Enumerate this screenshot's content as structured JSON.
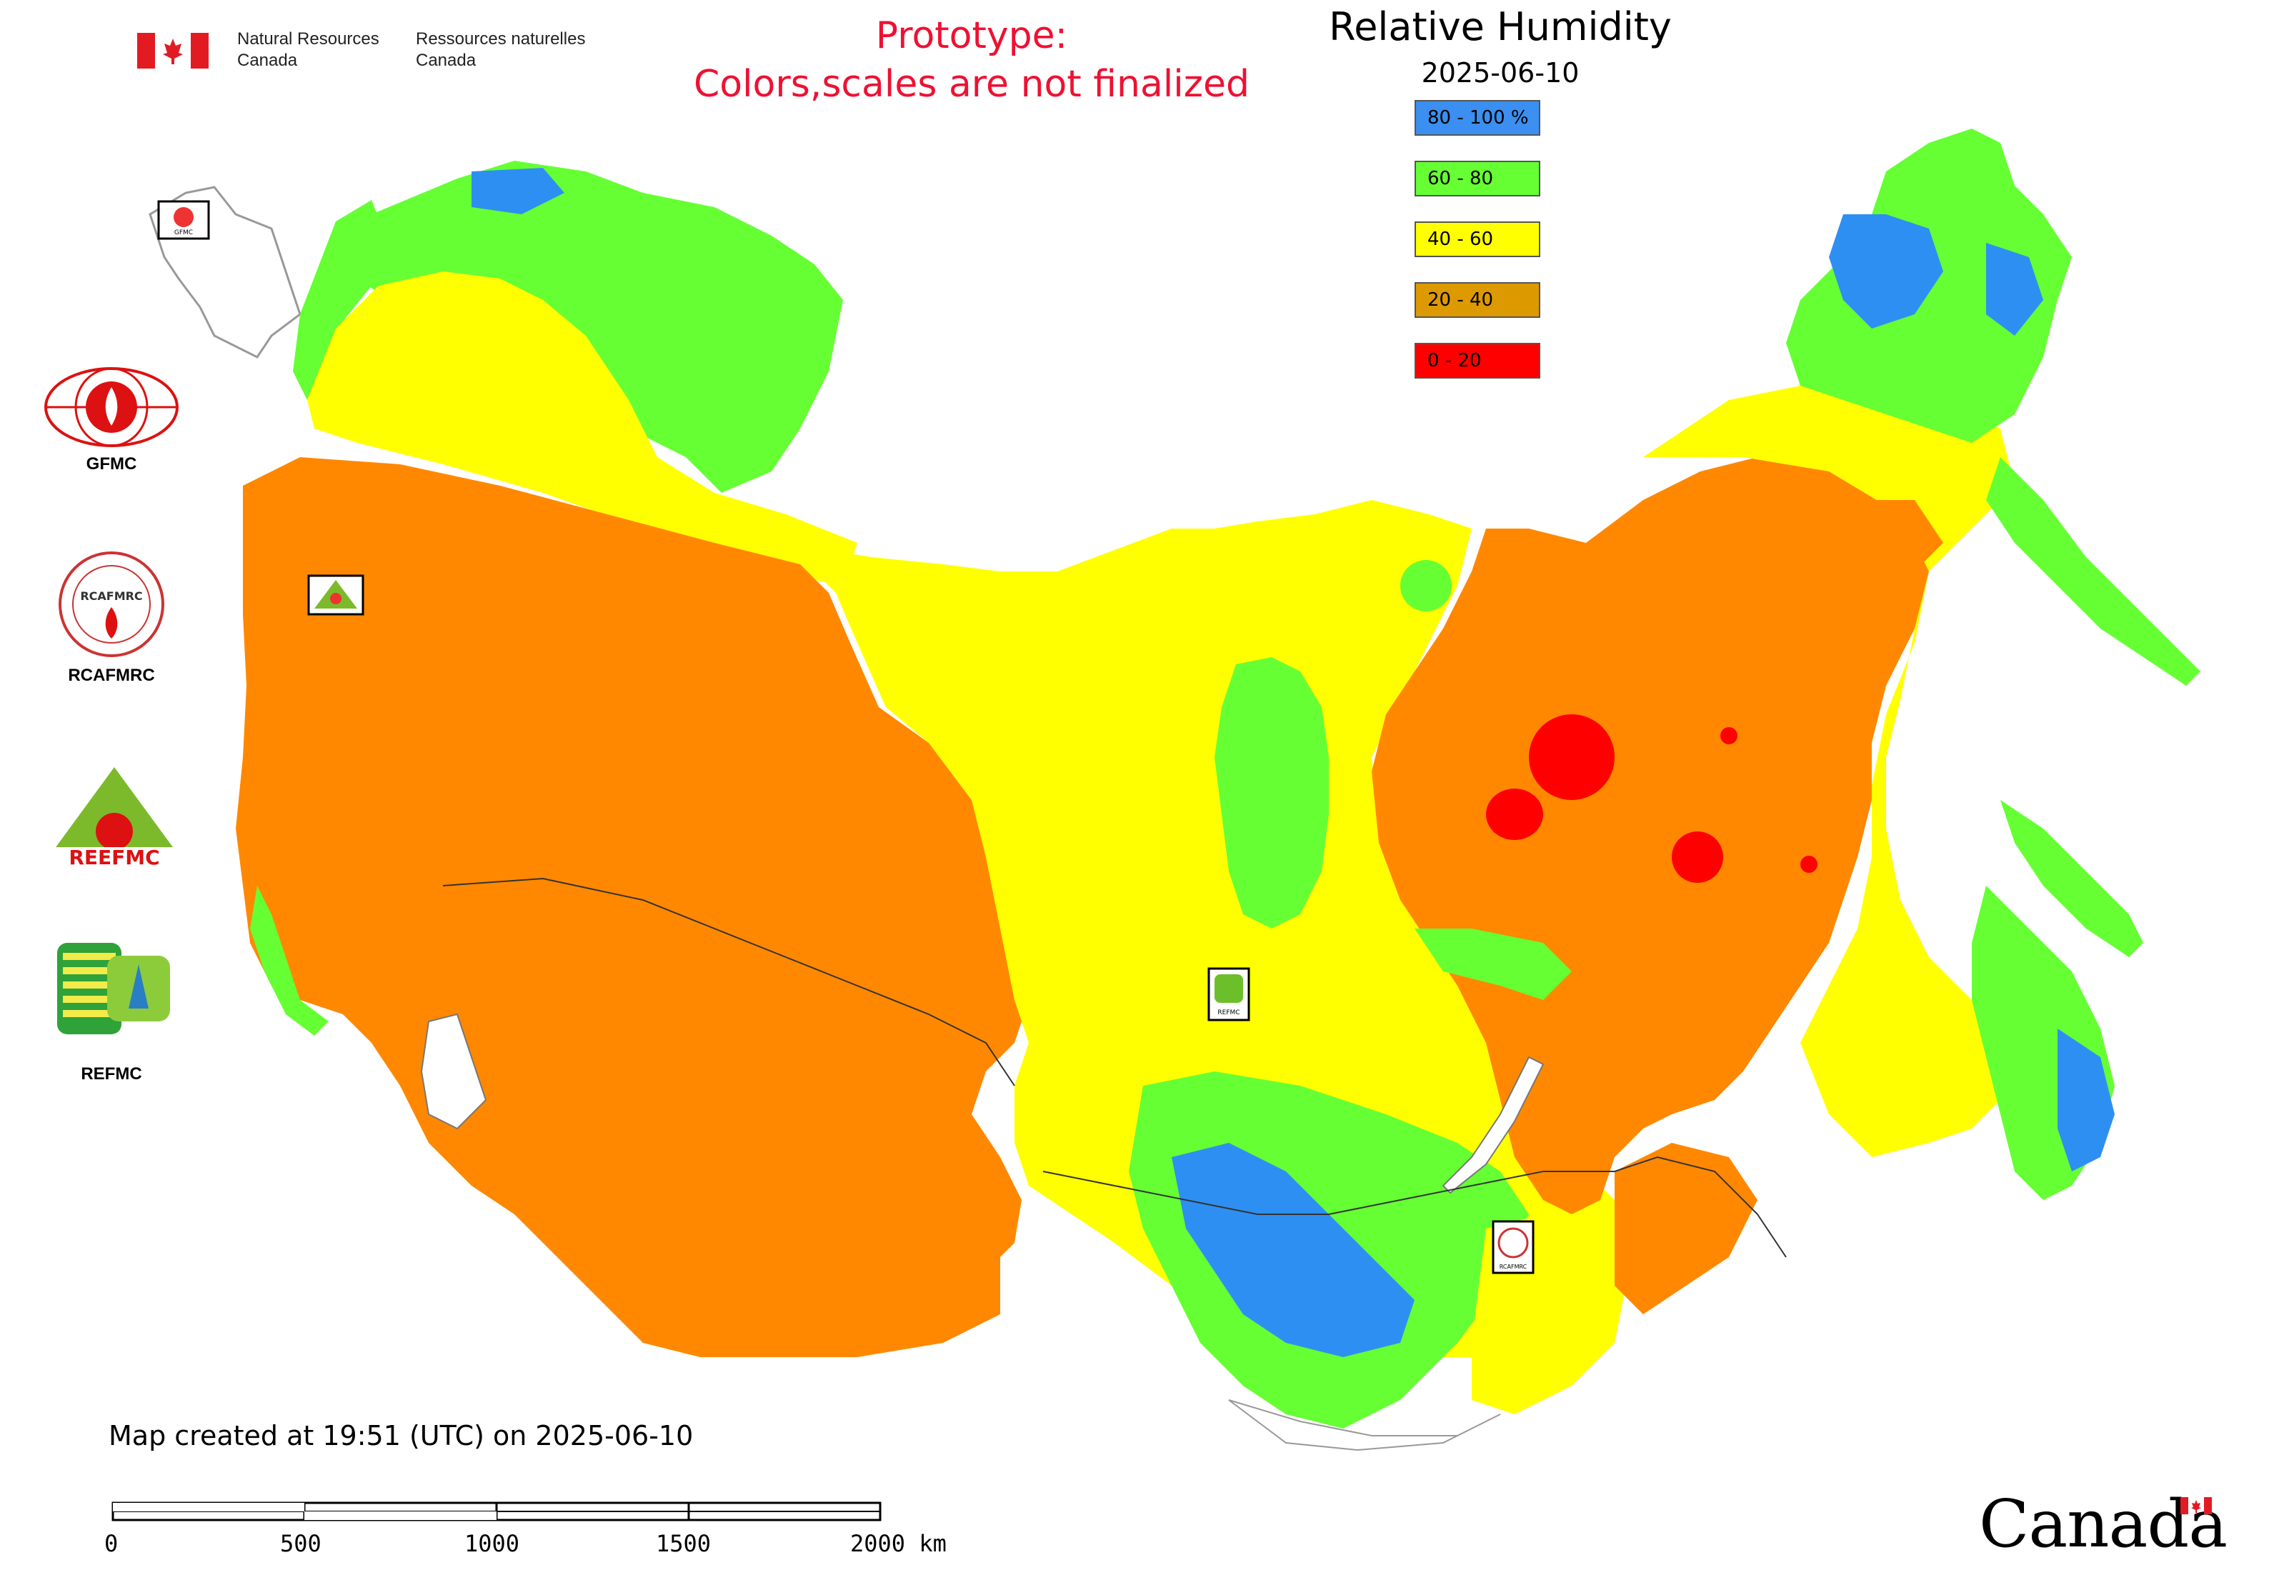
{
  "header": {
    "agency_en_line1": "Natural Resources",
    "agency_en_line2": "Canada",
    "agency_fr_line1": "Ressources naturelles",
    "agency_fr_line2": "Canada",
    "prototype_line1": "Prototype:",
    "prototype_line2": "Colors,scales are not finalized"
  },
  "map": {
    "title": "Relative Humidity",
    "date": "2025-06-10",
    "legend": [
      {
        "label": "80 - 100 %",
        "color": "#3a8ff0"
      },
      {
        "label": "60 - 80",
        "color": "#66ff33"
      },
      {
        "label": "40 - 60",
        "color": "#ffff00"
      },
      {
        "label": "20 - 40",
        "color": "#dd9900"
      },
      {
        "label": "0 - 20",
        "color": "#ff0000"
      }
    ],
    "dominant_colors": {
      "orange_map": "#ff8800",
      "yellow_map": "#ffff00",
      "green_map": "#66ff33",
      "blue_map": "#2e8ff2",
      "red_map": "#ff0000"
    },
    "station_markers": [
      "GFMC",
      "REEFMC",
      "REFMC",
      "RCAFMRC"
    ]
  },
  "side_logos": {
    "gfmc": "GFMC",
    "rcafmrc": "RCAFMRC",
    "reefmc": "REEFMC",
    "refmc": "REFMC"
  },
  "footer": {
    "created_note": "Map created at 19:51 (UTC) on 2025-06-10",
    "scale_ticks": [
      "0",
      "500",
      "1000",
      "1500",
      "2000 km"
    ],
    "wordmark": "Canada"
  }
}
